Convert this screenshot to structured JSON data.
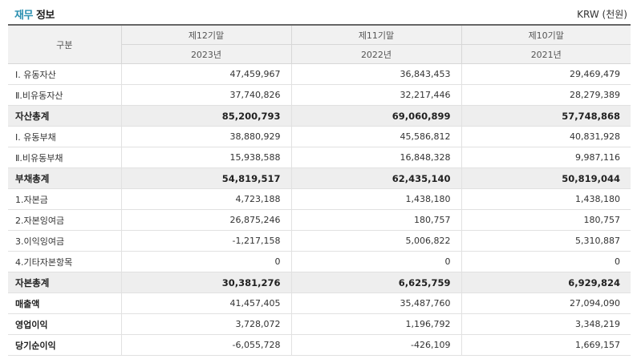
{
  "header": {
    "title_accent": "재무",
    "title_rest": " 정보",
    "unit": "KRW (천원)"
  },
  "table": {
    "corner_label": "구분",
    "periods": [
      "제12기말",
      "제11기말",
      "제10기말"
    ],
    "years": [
      "2023년",
      "2022년",
      "2021년"
    ],
    "rows": [
      {
        "label": "Ⅰ. 유동자산",
        "values": [
          "47,459,967",
          "36,843,453",
          "29,469,479"
        ],
        "style": "normal"
      },
      {
        "label": "Ⅱ.비유동자산",
        "values": [
          "37,740,826",
          "32,217,446",
          "28,279,389"
        ],
        "style": "normal"
      },
      {
        "label": "자산총계",
        "values": [
          "85,200,793",
          "69,060,899",
          "57,748,868"
        ],
        "style": "total"
      },
      {
        "label": "Ⅰ. 유동부채",
        "values": [
          "38,880,929",
          "45,586,812",
          "40,831,928"
        ],
        "style": "normal"
      },
      {
        "label": "Ⅱ.비유동부채",
        "values": [
          "15,938,588",
          "16,848,328",
          "9,987,116"
        ],
        "style": "normal"
      },
      {
        "label": "부채총계",
        "values": [
          "54,819,517",
          "62,435,140",
          "50,819,044"
        ],
        "style": "total"
      },
      {
        "label": "1.자본금",
        "values": [
          "4,723,188",
          "1,438,180",
          "1,438,180"
        ],
        "style": "normal"
      },
      {
        "label": "2.자본잉여금",
        "values": [
          "26,875,246",
          "180,757",
          "180,757"
        ],
        "style": "normal"
      },
      {
        "label": "3.이익잉여금",
        "values": [
          "-1,217,158",
          "5,006,822",
          "5,310,887"
        ],
        "style": "normal"
      },
      {
        "label": "4.기타자본항목",
        "values": [
          "0",
          "0",
          "0"
        ],
        "style": "normal"
      },
      {
        "label": "자본총계",
        "values": [
          "30,381,276",
          "6,625,759",
          "6,929,824"
        ],
        "style": "total"
      },
      {
        "label": "매출액",
        "values": [
          "41,457,405",
          "35,487,760",
          "27,094,090"
        ],
        "style": "strong"
      },
      {
        "label": "영업이익",
        "values": [
          "3,728,072",
          "1,196,792",
          "3,348,219"
        ],
        "style": "strong"
      },
      {
        "label": "당기순이익",
        "values": [
          "-6,055,728",
          "-426,109",
          "1,669,157"
        ],
        "style": "strong"
      }
    ]
  }
}
